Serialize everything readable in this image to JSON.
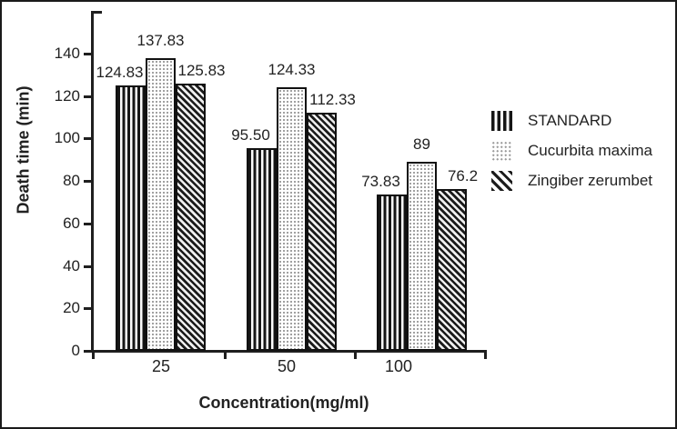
{
  "figure": {
    "background": "#ffffff",
    "border_color": "#1a1a1a",
    "ink_color": "#1f1f1f"
  },
  "chart_data": {
    "type": "bar",
    "title": "",
    "xlabel": "Concentration(mg/ml)",
    "ylabel": "Death time (min)",
    "categories": [
      "25",
      "50",
      "100"
    ],
    "series": [
      {
        "name": "STANDARD",
        "pattern": "vertical-stripes",
        "values": [
          124.83,
          95.5,
          73.83
        ],
        "labels": [
          "124.83",
          "95.50",
          "73.83"
        ]
      },
      {
        "name": "Cucurbita maxima",
        "pattern": "dots",
        "values": [
          137.83,
          124.33,
          89.0
        ],
        "labels": [
          "137.83",
          "124.33",
          "89"
        ]
      },
      {
        "name": "Zingiber zerumbet",
        "pattern": "diagonal-stripes",
        "values": [
          125.83,
          112.33,
          76.2
        ],
        "labels": [
          "125.83",
          "112.33",
          "76.2"
        ]
      }
    ],
    "ylim": [
      0,
      140
    ],
    "yticks": [
      0,
      20,
      40,
      60,
      80,
      100,
      120,
      140
    ],
    "grid": false,
    "legend_position": "right",
    "bar_border_color": "#111111",
    "dot_fill_color": "#8f8f8f"
  }
}
